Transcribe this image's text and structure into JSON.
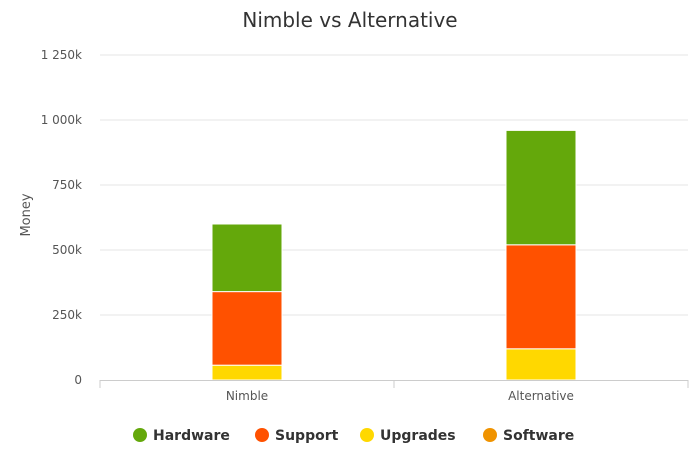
{
  "chart_data": {
    "type": "bar",
    "stacked": true,
    "title": "Nimble vs Alternative",
    "xlabel": "",
    "ylabel": "Money",
    "categories": [
      "Nimble",
      "Alternative"
    ],
    "ylim": [
      0,
      1250000
    ],
    "yticks": [
      0,
      250000,
      500000,
      750000,
      1000000,
      1250000
    ],
    "ytick_labels": [
      "0",
      "250k",
      "500k",
      "750k",
      "1 000k",
      "1 250k"
    ],
    "grid": true,
    "legend_position": "bottom",
    "series": [
      {
        "name": "Hardware",
        "color": "#64a80b",
        "values": [
          260000,
          440000
        ]
      },
      {
        "name": "Support",
        "color": "#ff5100",
        "values": [
          283000,
          400000
        ]
      },
      {
        "name": "Upgrades",
        "color": "#ffd800",
        "values": [
          57000,
          120000
        ]
      },
      {
        "name": "Software",
        "color": "#f09300",
        "values": [
          0,
          0
        ]
      }
    ]
  }
}
